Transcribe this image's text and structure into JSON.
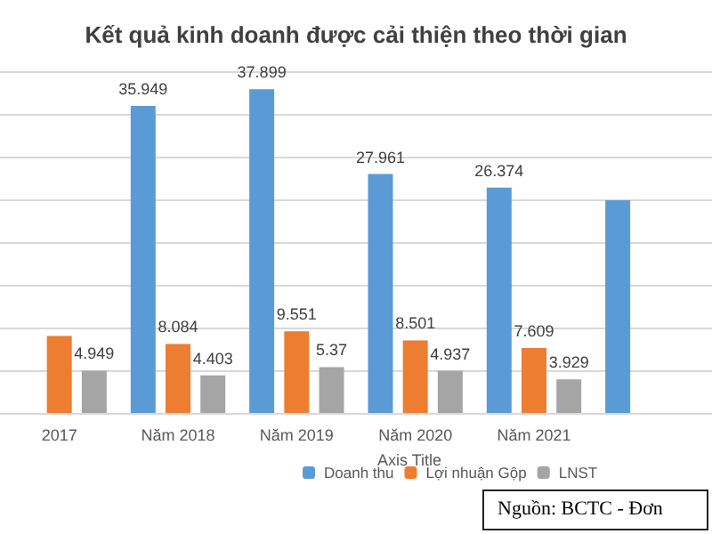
{
  "chart_data": {
    "type": "bar",
    "title": "Kết quả kinh doanh được cải thiện theo thời gian",
    "xlabel": "Axis Title",
    "categories": [
      "2017",
      "Năm 2018",
      "Năm 2019",
      "Năm 2020",
      "Năm 2021",
      null
    ],
    "series": [
      {
        "name": "Doanh thu",
        "color": "#5b9bd5",
        "values": [
          null,
          35.949,
          37.899,
          27.961,
          26.374,
          24.9
        ],
        "value_labels": [
          null,
          "35.949",
          "37.899",
          "27.961",
          "26.374",
          null
        ]
      },
      {
        "name": "Lợi nhuận Gộp",
        "color": "#ed7d31",
        "values": [
          9.0,
          8.084,
          9.551,
          8.501,
          7.609,
          null
        ],
        "value_labels": [
          null,
          "8.084",
          "9.551",
          "8.501",
          "7.609",
          null
        ]
      },
      {
        "name": "LNST",
        "color": "#a5a5a5",
        "values": [
          4.949,
          4.403,
          5.37,
          4.937,
          3.929,
          null
        ],
        "value_labels": [
          "4.949",
          "4.403",
          "5.37",
          "4.937",
          "3.929",
          null
        ]
      }
    ],
    "ylim": [
      0,
      40
    ],
    "yticks": [
      {
        "value": 0,
        "label": null
      },
      {
        "value": 5,
        "label": null
      },
      {
        "value": 10,
        "label": null
      },
      {
        "value": 15,
        "label": null
      },
      {
        "value": 20,
        "label": null
      },
      {
        "value": 25,
        "label": null
      },
      {
        "value": 30,
        "label": null
      },
      {
        "value": 35,
        "label": null
      },
      {
        "value": 40,
        "label": null
      }
    ],
    "tick_labels": "x",
    "grid": "y",
    "legend": "bottom",
    "annotations": [
      "Nguồn: BCTC - Đơn"
    ]
  }
}
